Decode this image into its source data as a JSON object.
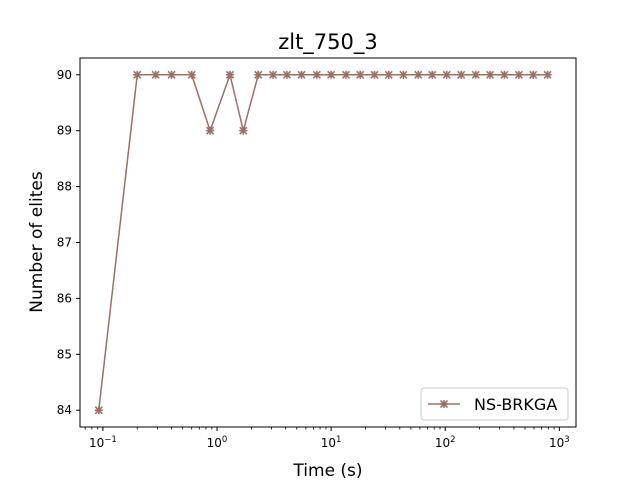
{
  "chart_data": {
    "type": "line",
    "title": "zlt_750_3",
    "xlabel": "Time (s)",
    "ylabel": "Number of elites",
    "xscale": "log",
    "xlim": [
      0.063,
      1400
    ],
    "ylim": [
      83.7,
      90.3
    ],
    "x_ticks": [
      {
        "value": 0.1,
        "base": "10",
        "exp": "−1"
      },
      {
        "value": 1,
        "base": "10",
        "exp": "0"
      },
      {
        "value": 10,
        "base": "10",
        "exp": "1"
      },
      {
        "value": 100,
        "base": "10",
        "exp": "2"
      },
      {
        "value": 1000,
        "base": "10",
        "exp": "3"
      }
    ],
    "y_ticks": [
      84,
      85,
      86,
      87,
      88,
      89,
      90
    ],
    "legend_position": "lower-right",
    "grid": false,
    "series": [
      {
        "name": "NS-BRKGA",
        "color": "#9b7069",
        "marker": "x-star",
        "x": [
          0.092,
          0.2,
          0.29,
          0.4,
          0.6,
          0.87,
          1.3,
          1.7,
          2.3,
          3.1,
          4.1,
          5.5,
          7.5,
          10,
          13.5,
          18,
          24,
          32,
          43,
          58,
          77,
          103,
          138,
          185,
          247,
          330,
          442,
          590,
          790
        ],
        "y": [
          84,
          90,
          90,
          90,
          90,
          89,
          90,
          89,
          90,
          90,
          90,
          90,
          90,
          90,
          90,
          90,
          90,
          90,
          90,
          90,
          90,
          90,
          90,
          90,
          90,
          90,
          90,
          90,
          90
        ]
      }
    ]
  }
}
